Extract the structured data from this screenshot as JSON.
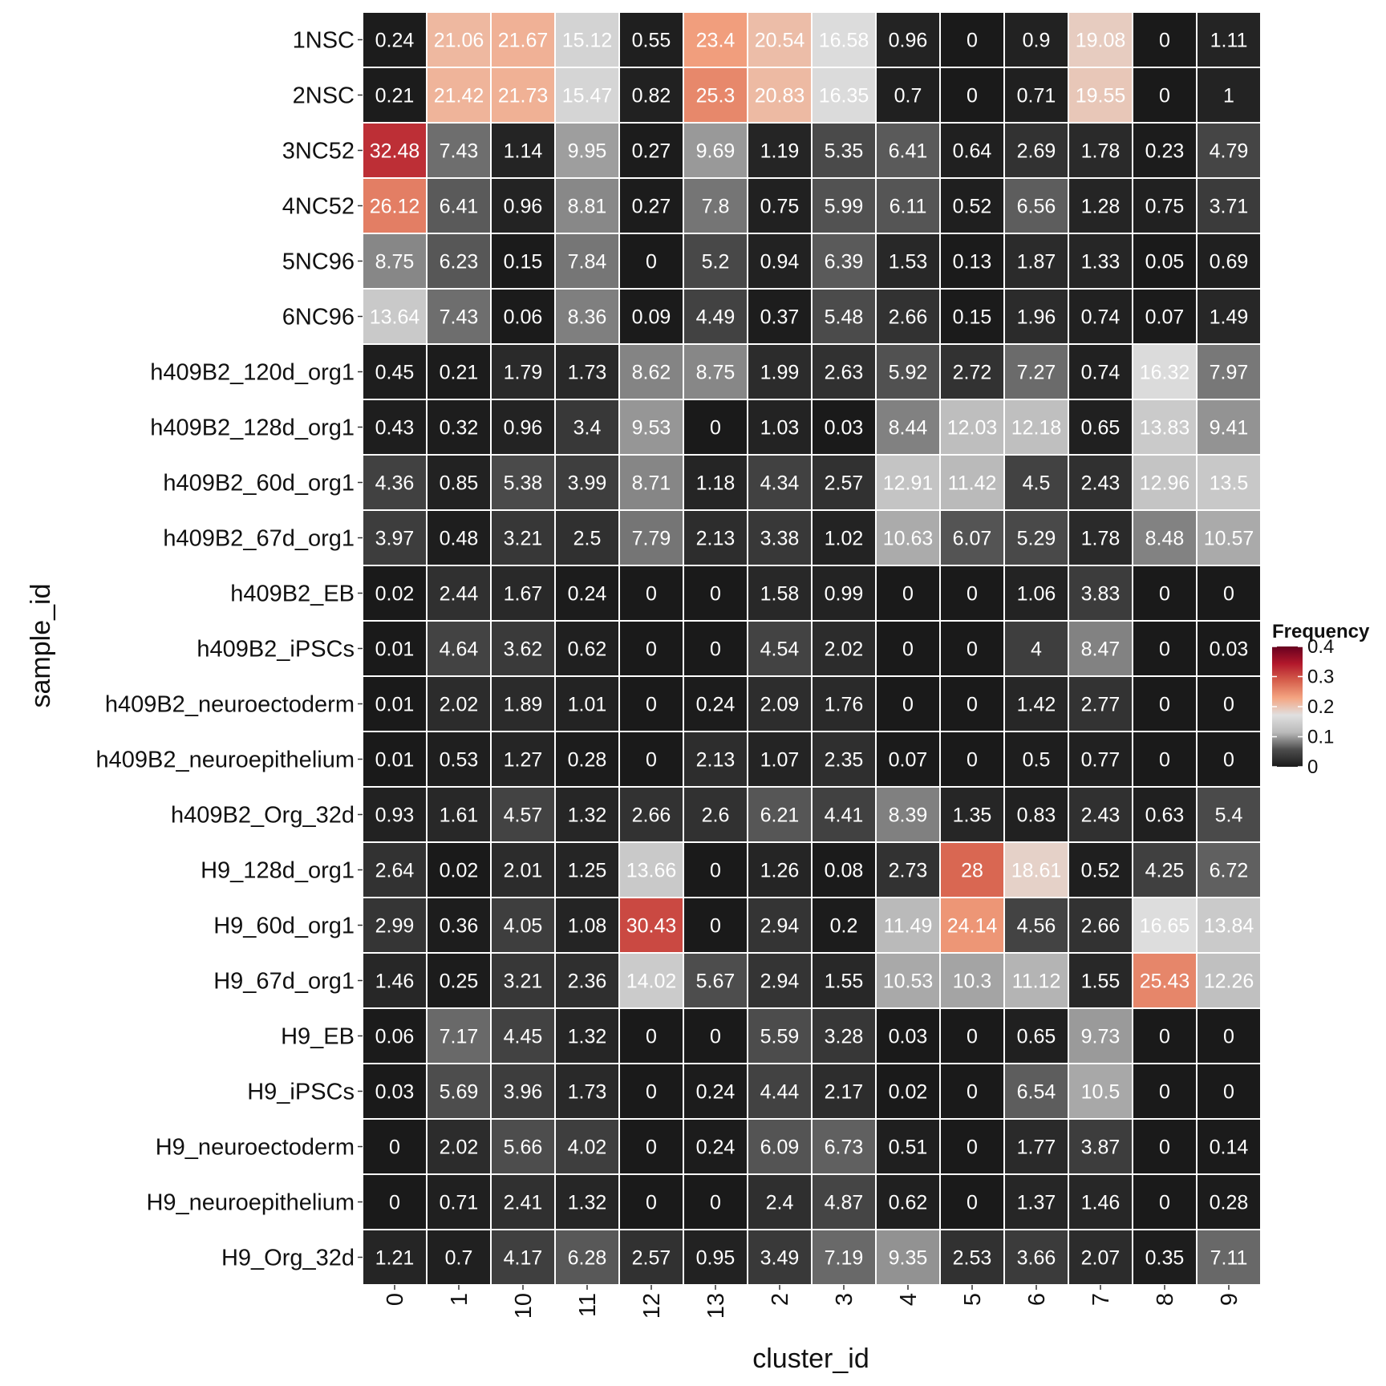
{
  "chart_data": {
    "type": "heatmap",
    "xlabel": "cluster_id",
    "ylabel": "sample_id",
    "x_categories": [
      "0",
      "1",
      "10",
      "11",
      "12",
      "13",
      "2",
      "3",
      "4",
      "5",
      "6",
      "7",
      "8",
      "9"
    ],
    "y_categories": [
      "1NSC",
      "2NSC",
      "3NC52",
      "4NC52",
      "5NC96",
      "6NC96",
      "h409B2_120d_org1",
      "h409B2_128d_org1",
      "h409B2_60d_org1",
      "h409B2_67d_org1",
      "h409B2_EB",
      "h409B2_iPSCs",
      "h409B2_neuroectoderm",
      "h409B2_neuroepithelium",
      "h409B2_Org_32d",
      "H9_128d_org1",
      "H9_60d_org1",
      "H9_67d_org1",
      "H9_EB",
      "H9_iPSCs",
      "H9_neuroectoderm",
      "H9_neuroepithelium",
      "H9_Org_32d"
    ],
    "values": [
      [
        "0.24",
        "21.06",
        "21.67",
        "15.12",
        "0.55",
        "23.4",
        "20.54",
        "16.58",
        "0.96",
        "0",
        "0.9",
        "19.08",
        "0",
        "1.11"
      ],
      [
        "0.21",
        "21.42",
        "21.73",
        "15.47",
        "0.82",
        "25.3",
        "20.83",
        "16.35",
        "0.7",
        "0",
        "0.71",
        "19.55",
        "0",
        "1"
      ],
      [
        "32.48",
        "7.43",
        "1.14",
        "9.95",
        "0.27",
        "9.69",
        "1.19",
        "5.35",
        "6.41",
        "0.64",
        "2.69",
        "1.78",
        "0.23",
        "4.79"
      ],
      [
        "26.12",
        "6.41",
        "0.96",
        "8.81",
        "0.27",
        "7.8",
        "0.75",
        "5.99",
        "6.11",
        "0.52",
        "6.56",
        "1.28",
        "0.75",
        "3.71"
      ],
      [
        "8.75",
        "6.23",
        "0.15",
        "7.84",
        "0",
        "5.2",
        "0.94",
        "6.39",
        "1.53",
        "0.13",
        "1.87",
        "1.33",
        "0.05",
        "0.69"
      ],
      [
        "13.64",
        "7.43",
        "0.06",
        "8.36",
        "0.09",
        "4.49",
        "0.37",
        "5.48",
        "2.66",
        "0.15",
        "1.96",
        "0.74",
        "0.07",
        "1.49"
      ],
      [
        "0.45",
        "0.21",
        "1.79",
        "1.73",
        "8.62",
        "8.75",
        "1.99",
        "2.63",
        "5.92",
        "2.72",
        "7.27",
        "0.74",
        "16.32",
        "7.97"
      ],
      [
        "0.43",
        "0.32",
        "0.96",
        "3.4",
        "9.53",
        "0",
        "1.03",
        "0.03",
        "8.44",
        "12.03",
        "12.18",
        "0.65",
        "13.83",
        "9.41"
      ],
      [
        "4.36",
        "0.85",
        "5.38",
        "3.99",
        "8.71",
        "1.18",
        "4.34",
        "2.57",
        "12.91",
        "11.42",
        "4.5",
        "2.43",
        "12.96",
        "13.5"
      ],
      [
        "3.97",
        "0.48",
        "3.21",
        "2.5",
        "7.79",
        "2.13",
        "3.38",
        "1.02",
        "10.63",
        "6.07",
        "5.29",
        "1.78",
        "8.48",
        "10.57"
      ],
      [
        "0.02",
        "2.44",
        "1.67",
        "0.24",
        "0",
        "0",
        "1.58",
        "0.99",
        "0",
        "0",
        "1.06",
        "3.83",
        "0",
        "0"
      ],
      [
        "0.01",
        "4.64",
        "3.62",
        "0.62",
        "0",
        "0",
        "4.54",
        "2.02",
        "0",
        "0",
        "4",
        "8.47",
        "0",
        "0.03"
      ],
      [
        "0.01",
        "2.02",
        "1.89",
        "1.01",
        "0",
        "0.24",
        "2.09",
        "1.76",
        "0",
        "0",
        "1.42",
        "2.77",
        "0",
        "0"
      ],
      [
        "0.01",
        "0.53",
        "1.27",
        "0.28",
        "0",
        "2.13",
        "1.07",
        "2.35",
        "0.07",
        "0",
        "0.5",
        "0.77",
        "0",
        "0"
      ],
      [
        "0.93",
        "1.61",
        "4.57",
        "1.32",
        "2.66",
        "2.6",
        "6.21",
        "4.41",
        "8.39",
        "1.35",
        "0.83",
        "2.43",
        "0.63",
        "5.4"
      ],
      [
        "2.64",
        "0.02",
        "2.01",
        "1.25",
        "13.66",
        "0",
        "1.26",
        "0.08",
        "2.73",
        "28",
        "18.61",
        "0.52",
        "4.25",
        "6.72"
      ],
      [
        "2.99",
        "0.36",
        "4.05",
        "1.08",
        "30.43",
        "0",
        "2.94",
        "0.2",
        "11.49",
        "24.14",
        "4.56",
        "2.66",
        "16.65",
        "13.84"
      ],
      [
        "1.46",
        "0.25",
        "3.21",
        "2.36",
        "14.02",
        "5.67",
        "2.94",
        "1.55",
        "10.53",
        "10.3",
        "11.12",
        "1.55",
        "25.43",
        "12.26"
      ],
      [
        "0.06",
        "7.17",
        "4.45",
        "1.32",
        "0",
        "0",
        "5.59",
        "3.28",
        "0.03",
        "0",
        "0.65",
        "9.73",
        "0",
        "0"
      ],
      [
        "0.03",
        "5.69",
        "3.96",
        "1.73",
        "0",
        "0.24",
        "4.44",
        "2.17",
        "0.02",
        "0",
        "6.54",
        "10.5",
        "0",
        "0"
      ],
      [
        "0",
        "2.02",
        "5.66",
        "4.02",
        "0",
        "0.24",
        "6.09",
        "6.73",
        "0.51",
        "0",
        "1.77",
        "3.87",
        "0",
        "0.14"
      ],
      [
        "0",
        "0.71",
        "2.41",
        "1.32",
        "0",
        "0",
        "2.4",
        "4.87",
        "0.62",
        "0",
        "1.37",
        "1.46",
        "0",
        "0.28"
      ],
      [
        "1.21",
        "0.7",
        "4.17",
        "6.28",
        "2.57",
        "0.95",
        "3.49",
        "7.19",
        "9.35",
        "2.53",
        "3.66",
        "2.07",
        "0.35",
        "7.11"
      ]
    ],
    "legend": {
      "title": "Frequency",
      "ticks": [
        "0.4",
        "0.3",
        "0.2",
        "0.1",
        "0"
      ],
      "range": [
        0,
        0.4
      ],
      "colors": [
        "#1a1a1a",
        "#4d4d4d",
        "#bababa",
        "#e0e0e0",
        "#f4a582",
        "#d6604d",
        "#b2182b",
        "#67001f"
      ]
    },
    "grid": true
  }
}
